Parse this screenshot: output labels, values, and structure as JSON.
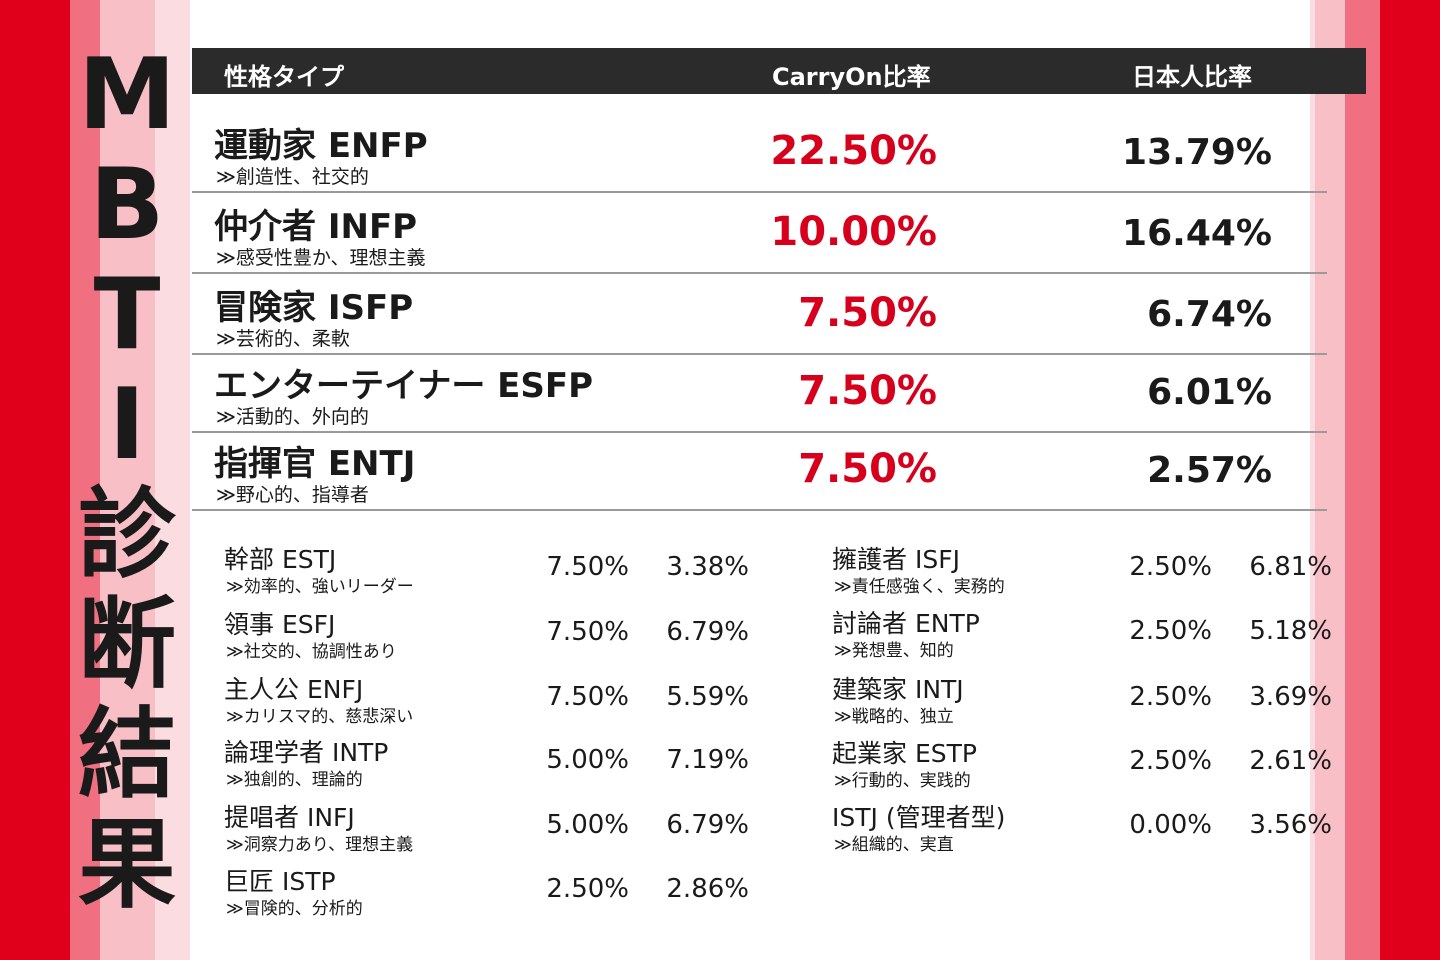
{
  "title_chars": [
    "M",
    "B",
    "T",
    "I",
    "診",
    "断",
    "結",
    "果"
  ],
  "header": {
    "type_label": "性格タイプ",
    "carryon_label": "CarryOn比率",
    "japan_label": "日本人比率"
  },
  "top_rows": [
    {
      "name": "運動家 ENFP",
      "desc": "≫創造性、社交的",
      "carryon": "22.50%",
      "japan": "13.79%"
    },
    {
      "name": "仲介者 INFP",
      "desc": "≫感受性豊か、理想主義",
      "carryon": "10.00%",
      "japan": "16.44%"
    },
    {
      "name": "冒険家 ISFP",
      "desc": "≫芸術的、柔軟",
      "carryon": "7.50%",
      "japan": "6.74%"
    },
    {
      "name": "エンターテイナー ESFP",
      "desc": "≫活動的、外向的",
      "carryon": "7.50%",
      "japan": "6.01%"
    },
    {
      "name": "指揮官 ENTJ",
      "desc": "≫野心的、指導者",
      "carryon": "7.50%",
      "japan": "2.57%"
    }
  ],
  "left_rows": [
    {
      "name": "幹部 ESTJ",
      "desc": "≫効率的、強いリーダー",
      "carryon": "7.50%",
      "japan": "3.38%"
    },
    {
      "name": "領事 ESFJ",
      "desc": "≫社交的、協調性あり",
      "carryon": "7.50%",
      "japan": "6.79%"
    },
    {
      "name": "主人公 ENFJ",
      "desc": "≫カリスマ的、慈悲深い",
      "carryon": "7.50%",
      "japan": "5.59%"
    },
    {
      "name": "論理学者 INTP",
      "desc": "≫独創的、理論的",
      "carryon": "5.00%",
      "japan": "7.19%"
    },
    {
      "name": "提唱者 INFJ",
      "desc": "≫洞察力あり、理想主義",
      "carryon": "5.00%",
      "japan": "6.79%"
    },
    {
      "name": "巨匠 ISTP",
      "desc": "≫冒険的、分析的",
      "carryon": "2.50%",
      "japan": "2.86%"
    }
  ],
  "right_rows": [
    {
      "name": "擁護者 ISFJ",
      "desc": "≫責任感強く、実務的",
      "carryon": "2.50%",
      "japan": "6.81%"
    },
    {
      "name": "討論者 ENTP",
      "desc": "≫発想豊、知的",
      "carryon": "2.50%",
      "japan": "5.18%"
    },
    {
      "name": "建築家 INTJ",
      "desc": "≫戦略的、独立",
      "carryon": "2.50%",
      "japan": "3.69%"
    },
    {
      "name": "起業家 ESTP",
      "desc": "≫行動的、実践的",
      "carryon": "2.50%",
      "japan": "2.61%"
    },
    {
      "name": "ISTJ (管理者型)",
      "desc": "≫組織的、実直",
      "carryon": "0.00%",
      "japan": "3.56%"
    }
  ],
  "colors": {
    "accent_red": "#d6001c",
    "header_bg": "#2b2b2b"
  }
}
